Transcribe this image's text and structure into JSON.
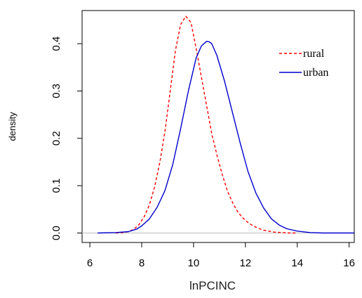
{
  "chart_data": {
    "type": "line",
    "xlabel": "lnPCINC",
    "ylabel": "density",
    "xlim": [
      5.7,
      16.2
    ],
    "ylim": [
      -0.02,
      0.47
    ],
    "xticks": [
      6,
      8,
      10,
      12,
      14,
      16
    ],
    "yticks": [
      0.0,
      0.1,
      0.2,
      0.3,
      0.4
    ],
    "ytick_labels": [
      "0.0",
      "0.1",
      "0.2",
      "0.3",
      "0.4"
    ],
    "grid": false,
    "baseline": {
      "y": 0,
      "color": "#bebebe"
    },
    "legend_position": "top-right",
    "series": [
      {
        "name": "rural",
        "color": "#ff0000",
        "line_style": "dashed",
        "x": [
          7.0,
          7.3,
          7.5,
          7.7,
          7.9,
          8.1,
          8.3,
          8.5,
          8.7,
          8.9,
          9.1,
          9.3,
          9.5,
          9.7,
          9.9,
          10.1,
          10.3,
          10.5,
          10.7,
          10.9,
          11.1,
          11.3,
          11.5,
          11.7,
          11.9,
          12.1,
          12.3,
          12.5,
          12.7,
          12.9,
          13.1,
          13.4,
          13.7,
          14.0
        ],
        "y": [
          0.0,
          0.001,
          0.003,
          0.008,
          0.018,
          0.035,
          0.06,
          0.098,
          0.15,
          0.215,
          0.3,
          0.385,
          0.44,
          0.458,
          0.445,
          0.39,
          0.33,
          0.27,
          0.21,
          0.165,
          0.125,
          0.09,
          0.065,
          0.045,
          0.032,
          0.022,
          0.015,
          0.01,
          0.006,
          0.004,
          0.002,
          0.001,
          0.0,
          0.0
        ]
      },
      {
        "name": "urban",
        "color": "#0000cc",
        "line_style": "solid",
        "x": [
          6.3,
          7.0,
          7.5,
          7.8,
          8.0,
          8.3,
          8.6,
          8.9,
          9.2,
          9.5,
          9.8,
          10.1,
          10.3,
          10.5,
          10.6,
          10.7,
          10.9,
          11.2,
          11.5,
          11.8,
          12.1,
          12.4,
          12.7,
          13.0,
          13.3,
          13.6,
          14.0,
          14.5,
          15.0,
          16.2
        ],
        "y": [
          0.0,
          0.001,
          0.003,
          0.008,
          0.015,
          0.03,
          0.055,
          0.09,
          0.145,
          0.22,
          0.3,
          0.37,
          0.395,
          0.405,
          0.404,
          0.4,
          0.375,
          0.32,
          0.255,
          0.19,
          0.13,
          0.085,
          0.053,
          0.03,
          0.017,
          0.009,
          0.004,
          0.001,
          0.0,
          0.0
        ]
      }
    ]
  }
}
